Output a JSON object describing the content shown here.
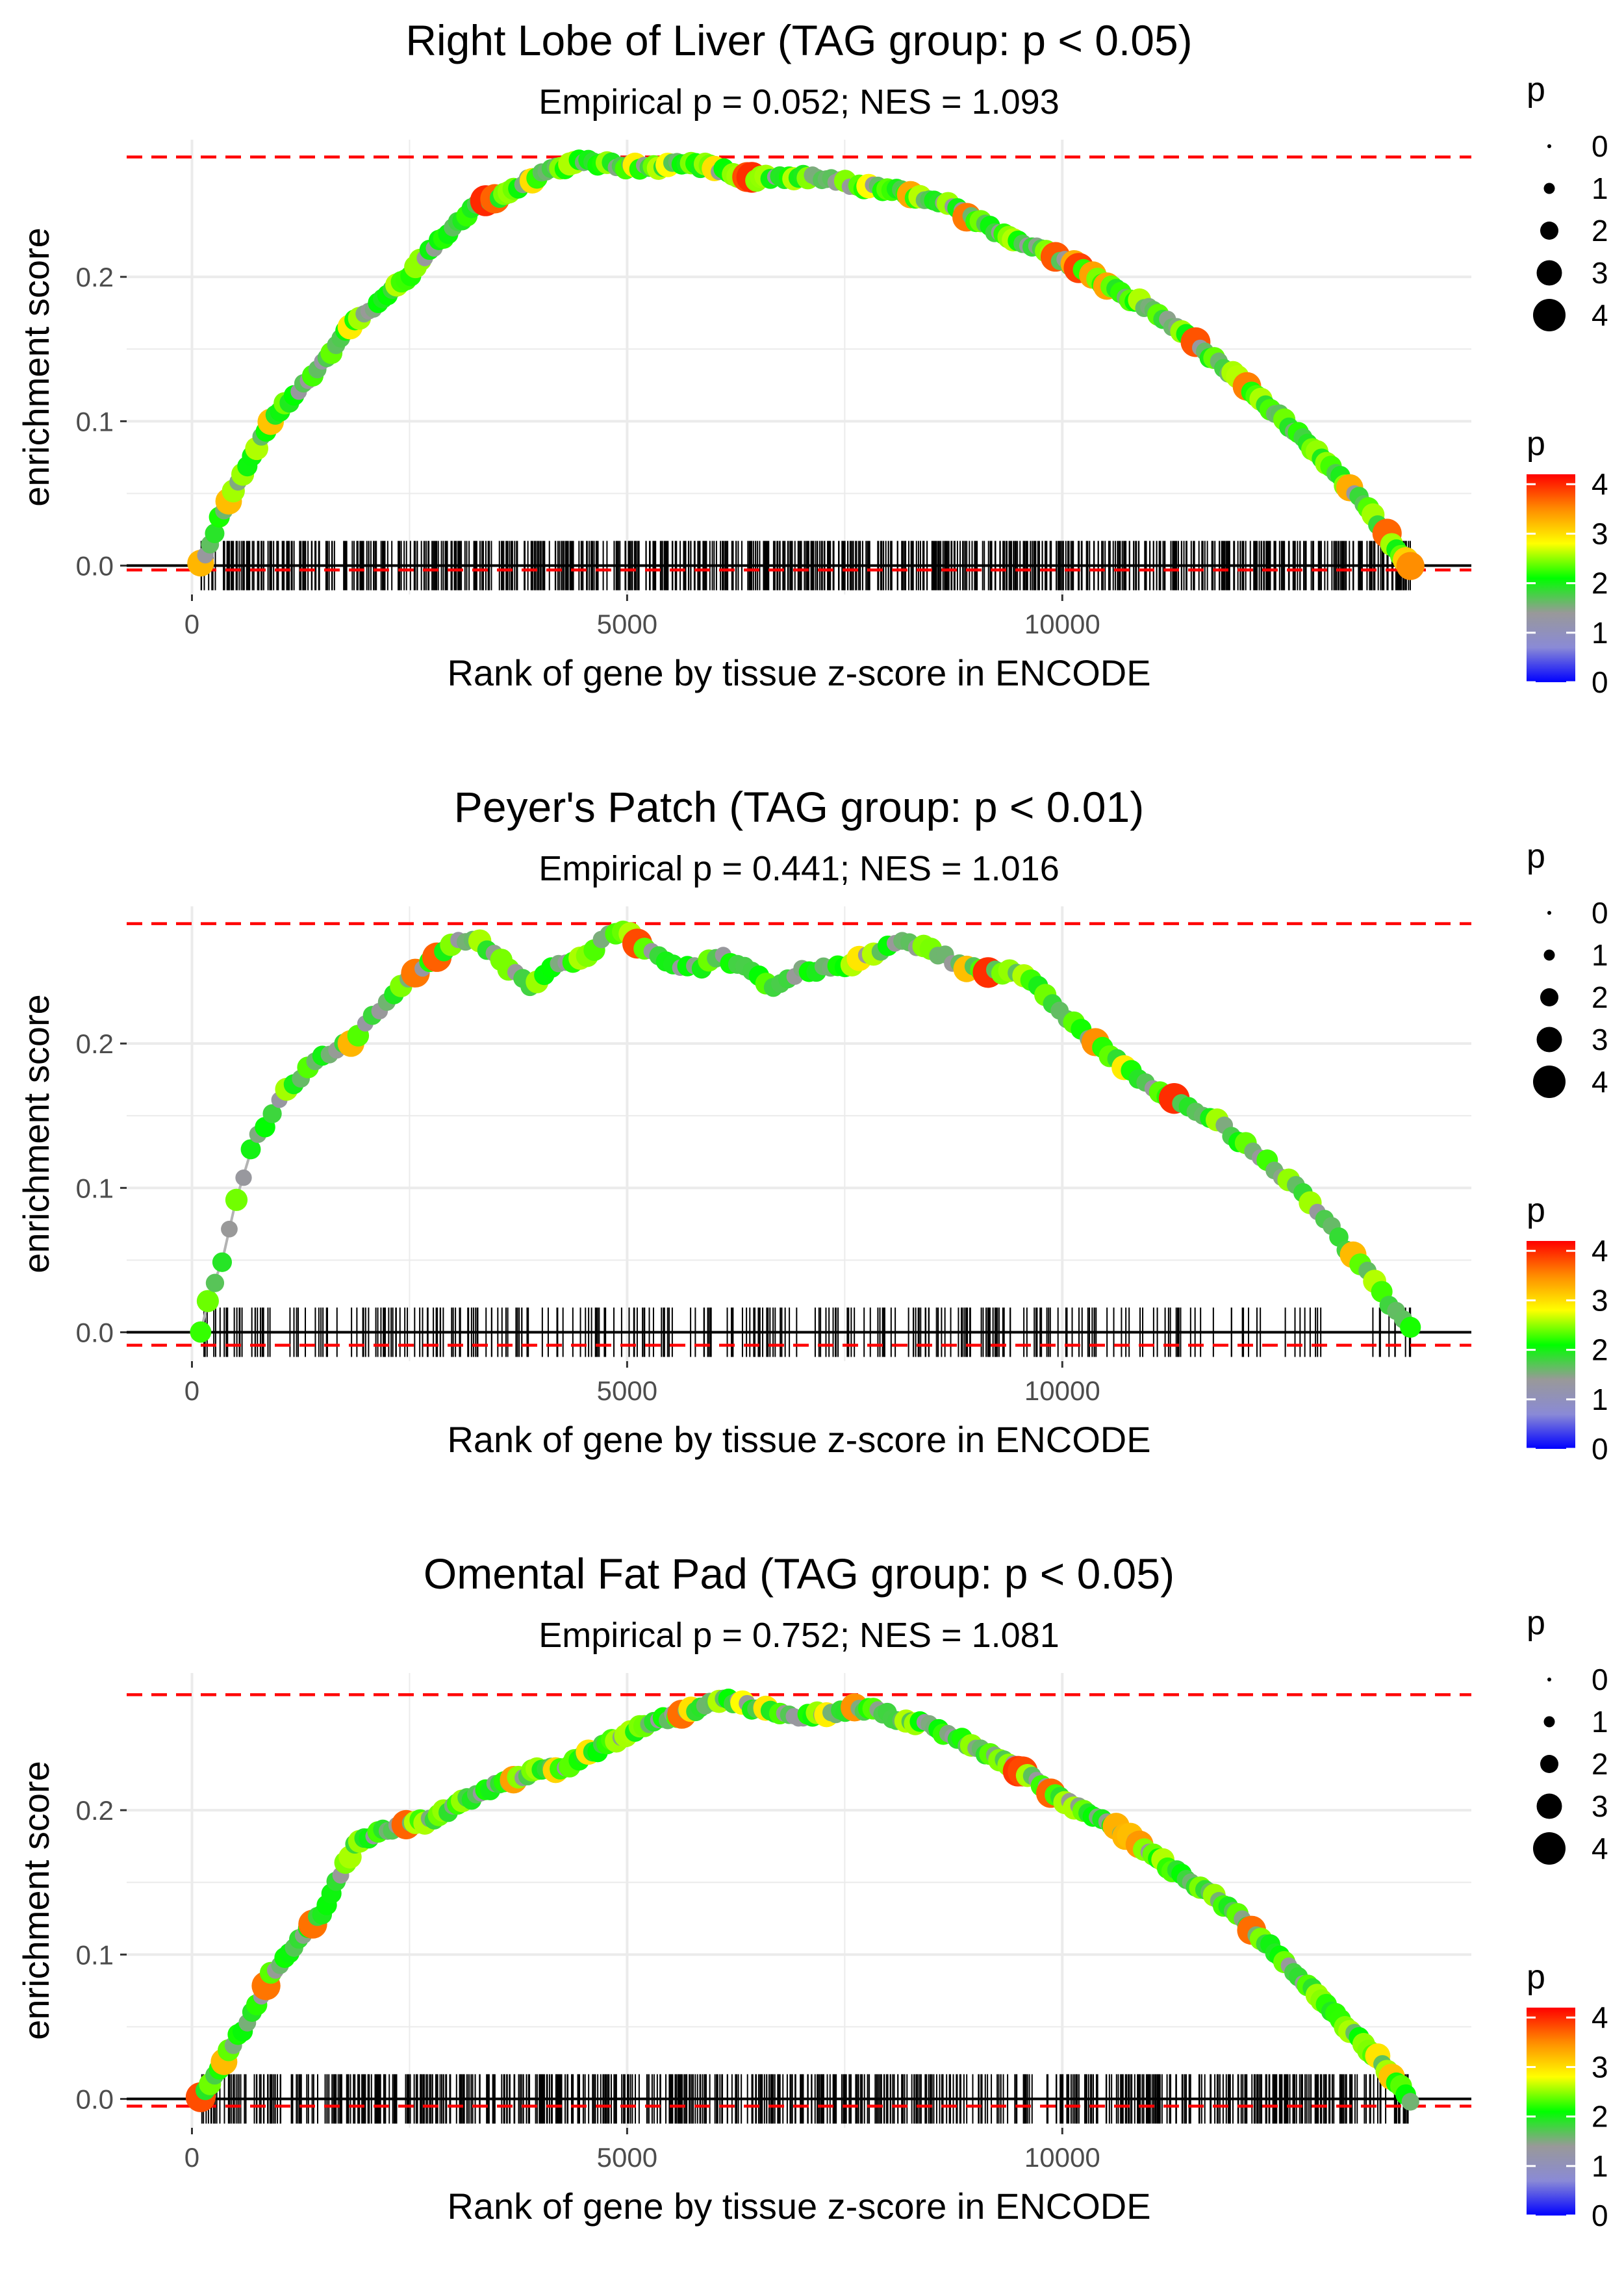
{
  "chart_data": [
    {
      "type": "line",
      "title": "Right Lobe of Liver (TAG group: p < 0.05)",
      "subtitle": "Empirical p = 0.052; NES = 1.093",
      "xlabel": "Rank of gene by tissue z-score in ENCODE",
      "ylabel": "enrichment score",
      "xlim": [
        -750,
        14700
      ],
      "ylim": [
        -0.02,
        0.295
      ],
      "xticks": [
        0,
        5000,
        10000
      ],
      "xtick_labels": [
        "0",
        "5000",
        "10000"
      ],
      "yticks": [
        0.0,
        0.1,
        0.2
      ],
      "ytick_labels": [
        "0.0",
        "0.1",
        "0.2"
      ],
      "reference_lines": {
        "upper": 0.283,
        "lower": -0.003
      },
      "legend_size_title": "p",
      "legend_size_labels": [
        "0",
        "1",
        "2",
        "3",
        "4"
      ],
      "legend_color_title": "p",
      "legend_color_labels": [
        "4",
        "3",
        "2",
        "1",
        "0"
      ],
      "color_scale": [
        "#0000ff",
        "#8a8ad6",
        "#999999",
        "#00ff00",
        "#ffff00",
        "#ff8c00",
        "#ff0000"
      ],
      "curve": {
        "x": [
          100,
          300,
          600,
          900,
          1200,
          1500,
          1800,
          2100,
          2400,
          2700,
          3000,
          3300,
          3600,
          3900,
          4200,
          4500,
          4800,
          5100,
          5400,
          5700,
          6000,
          6300,
          6600,
          6900,
          7200,
          7500,
          7800,
          8100,
          8400,
          8700,
          9000,
          9300,
          9600,
          9900,
          10200,
          10500,
          10800,
          11100,
          11400,
          11700,
          12000,
          12300,
          12600,
          12900,
          13200,
          13500,
          13800,
          14000
        ],
        "y": [
          0.0,
          0.03,
          0.065,
          0.1,
          0.12,
          0.14,
          0.165,
          0.18,
          0.195,
          0.215,
          0.235,
          0.25,
          0.258,
          0.268,
          0.275,
          0.28,
          0.278,
          0.276,
          0.277,
          0.279,
          0.275,
          0.27,
          0.268,
          0.27,
          0.268,
          0.265,
          0.262,
          0.26,
          0.255,
          0.25,
          0.24,
          0.23,
          0.222,
          0.215,
          0.205,
          0.195,
          0.185,
          0.175,
          0.16,
          0.145,
          0.13,
          0.115,
          0.098,
          0.08,
          0.06,
          0.04,
          0.015,
          0.0
        ]
      },
      "hits": 800,
      "seed": 11
    },
    {
      "type": "line",
      "title": "Peyer's Patch (TAG group: p < 0.01)",
      "subtitle": "Empirical p = 0.441; NES = 1.016",
      "xlabel": "Rank of gene by tissue z-score in ENCODE",
      "ylabel": "enrichment score",
      "xlim": [
        -750,
        14700
      ],
      "ylim": [
        -0.02,
        0.295
      ],
      "xticks": [
        0,
        5000,
        10000
      ],
      "xtick_labels": [
        "0",
        "5000",
        "10000"
      ],
      "yticks": [
        0.0,
        0.1,
        0.2
      ],
      "ytick_labels": [
        "0.0",
        "0.1",
        "0.2"
      ],
      "reference_lines": {
        "upper": 0.283,
        "lower": -0.009
      },
      "legend_size_title": "p",
      "legend_size_labels": [
        "0",
        "1",
        "2",
        "3",
        "4"
      ],
      "legend_color_title": "p",
      "legend_color_labels": [
        "4",
        "3",
        "2",
        "1",
        "0"
      ],
      "color_scale": [
        "#0000ff",
        "#8a8ad6",
        "#999999",
        "#00ff00",
        "#ffff00",
        "#ff8c00",
        "#ff0000"
      ],
      "curve": {
        "x": [
          100,
          200,
          350,
          500,
          700,
          900,
          1100,
          1300,
          1500,
          1800,
          2100,
          2400,
          2700,
          3000,
          3300,
          3600,
          3900,
          4200,
          4500,
          4800,
          5000,
          5200,
          5500,
          5800,
          6100,
          6400,
          6700,
          7000,
          7300,
          7600,
          7900,
          8200,
          8500,
          8800,
          9100,
          9400,
          9600,
          9800,
          10000,
          10300,
          10600,
          10900,
          11200,
          11500,
          11800,
          12100,
          12400,
          12700,
          13000,
          13300,
          13600,
          13800,
          14000
        ],
        "y": [
          0.0,
          0.025,
          0.05,
          0.09,
          0.13,
          0.15,
          0.17,
          0.18,
          0.19,
          0.2,
          0.22,
          0.24,
          0.255,
          0.27,
          0.27,
          0.255,
          0.24,
          0.255,
          0.26,
          0.275,
          0.28,
          0.265,
          0.255,
          0.252,
          0.26,
          0.25,
          0.238,
          0.25,
          0.252,
          0.255,
          0.265,
          0.27,
          0.265,
          0.255,
          0.25,
          0.25,
          0.245,
          0.235,
          0.22,
          0.205,
          0.19,
          0.175,
          0.165,
          0.155,
          0.145,
          0.13,
          0.115,
          0.1,
          0.08,
          0.055,
          0.035,
          0.015,
          0.005
        ]
      },
      "hits": 300,
      "seed": 22
    },
    {
      "type": "line",
      "title": "Omental Fat Pad (TAG group: p < 0.05)",
      "subtitle": "Empirical p = 0.752; NES = 1.081",
      "xlabel": "Rank of gene by tissue z-score in ENCODE",
      "ylabel": "enrichment score",
      "xlim": [
        -750,
        14700
      ],
      "ylim": [
        -0.02,
        0.295
      ],
      "xticks": [
        0,
        5000,
        10000
      ],
      "xtick_labels": [
        "0",
        "5000",
        "10000"
      ],
      "yticks": [
        0.0,
        0.1,
        0.2
      ],
      "ytick_labels": [
        "0.0",
        "0.1",
        "0.2"
      ],
      "reference_lines": {
        "upper": 0.28,
        "lower": -0.005
      },
      "legend_size_title": "p",
      "legend_size_labels": [
        "0",
        "1",
        "2",
        "3",
        "4"
      ],
      "legend_color_title": "p",
      "legend_color_labels": [
        "4",
        "3",
        "2",
        "1",
        "0"
      ],
      "color_scale": [
        "#0000ff",
        "#8a8ad6",
        "#999999",
        "#00ff00",
        "#ffff00",
        "#ff8c00",
        "#ff0000"
      ],
      "curve": {
        "x": [
          100,
          300,
          500,
          700,
          900,
          1100,
          1300,
          1500,
          1700,
          1900,
          2200,
          2500,
          2800,
          3100,
          3400,
          3700,
          4000,
          4300,
          4600,
          4900,
          5200,
          5500,
          5800,
          6100,
          6400,
          6700,
          7000,
          7300,
          7600,
          7900,
          8200,
          8500,
          8800,
          9100,
          9400,
          9700,
          10000,
          10300,
          10600,
          10900,
          11200,
          11500,
          11800,
          12100,
          12400,
          12700,
          13000,
          13300,
          13600,
          13800,
          14000
        ],
        "y": [
          0.0,
          0.02,
          0.04,
          0.06,
          0.085,
          0.1,
          0.115,
          0.13,
          0.155,
          0.178,
          0.185,
          0.19,
          0.195,
          0.205,
          0.215,
          0.222,
          0.228,
          0.23,
          0.24,
          0.25,
          0.258,
          0.265,
          0.27,
          0.278,
          0.272,
          0.268,
          0.265,
          0.266,
          0.27,
          0.268,
          0.262,
          0.258,
          0.25,
          0.24,
          0.232,
          0.22,
          0.208,
          0.198,
          0.188,
          0.175,
          0.162,
          0.15,
          0.138,
          0.122,
          0.105,
          0.085,
          0.068,
          0.048,
          0.03,
          0.015,
          0.0
        ]
      },
      "hits": 700,
      "seed": 33
    }
  ]
}
